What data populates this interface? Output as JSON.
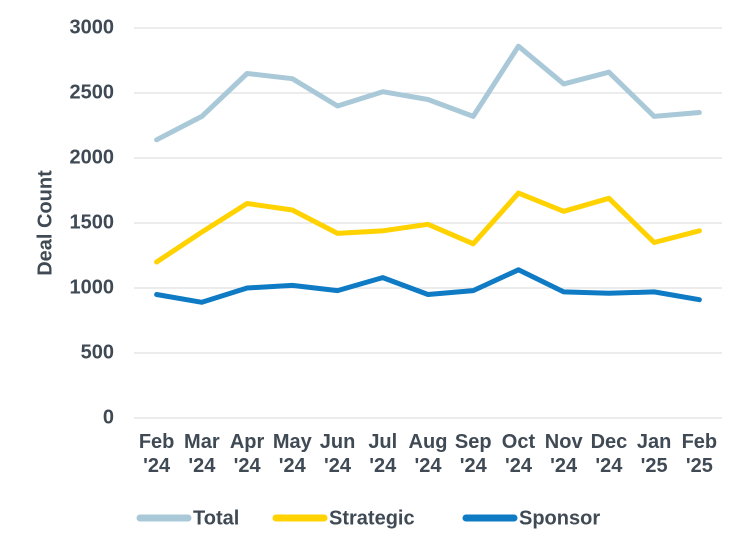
{
  "chart_data": {
    "type": "line",
    "y_label": "Deal Count",
    "categories": [
      "Feb '24",
      "Mar '24",
      "Apr '24",
      "May '24",
      "Jun '24",
      "Jul '24",
      "Aug '24",
      "Sep '24",
      "Oct '24",
      "Nov '24",
      "Dec '24",
      "Jan '25",
      "Feb '25"
    ],
    "series": [
      {
        "name": "Total",
        "color": "#a9c8d8",
        "values": [
          2140,
          2320,
          2650,
          2610,
          2400,
          2510,
          2450,
          2320,
          2860,
          2570,
          2660,
          2320,
          2350
        ]
      },
      {
        "name": "Strategic",
        "color": "#ffd200",
        "values": [
          1200,
          1430,
          1650,
          1600,
          1420,
          1440,
          1490,
          1340,
          1730,
          1590,
          1690,
          1350,
          1440
        ]
      },
      {
        "name": "Sponsor",
        "color": "#0e7bc4",
        "values": [
          950,
          890,
          1000,
          1020,
          980,
          1080,
          950,
          980,
          1140,
          970,
          960,
          970,
          910
        ]
      }
    ],
    "ylim": [
      0,
      3000
    ],
    "yticks": [
      0,
      500,
      1000,
      1500,
      2000,
      2500,
      3000
    ],
    "grid": true,
    "legend": "bottom"
  }
}
